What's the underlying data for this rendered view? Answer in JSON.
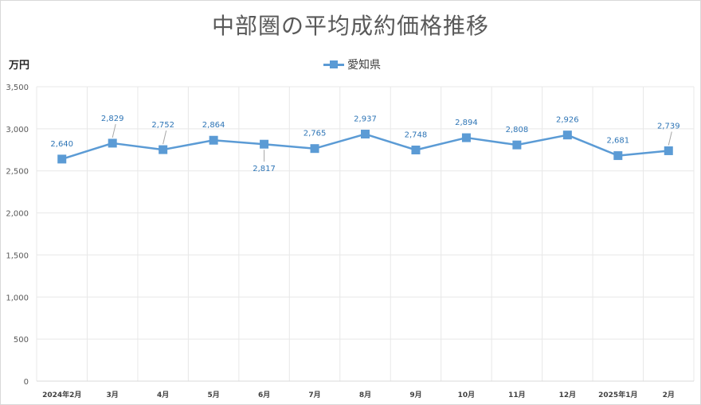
{
  "chart_data": {
    "type": "line",
    "title": "中部圏の平均成約価格推移",
    "ylabel": "万円",
    "ylim": [
      0,
      3500
    ],
    "ytick_step": 500,
    "ytick_labels": [
      "0",
      "500",
      "1,000",
      "1,500",
      "2,000",
      "2,500",
      "3,000",
      "3,500"
    ],
    "grid": true,
    "legend_position": "top-center",
    "categories": [
      "2024年2月",
      "3月",
      "4月",
      "5月",
      "6月",
      "7月",
      "8月",
      "9月",
      "10月",
      "11月",
      "12月",
      "2025年1月",
      "2月"
    ],
    "series": [
      {
        "name": "愛知県",
        "color": "#5b9bd5",
        "values": [
          2640,
          2829,
          2752,
          2864,
          2817,
          2765,
          2937,
          2748,
          2894,
          2808,
          2926,
          2681,
          2739
        ],
        "labels": [
          "2,640",
          "2,829",
          "2,752",
          "2,864",
          "2,817",
          "2,765",
          "2,937",
          "2,748",
          "2,894",
          "2,808",
          "2,926",
          "2,681",
          "2,739"
        ]
      }
    ]
  }
}
